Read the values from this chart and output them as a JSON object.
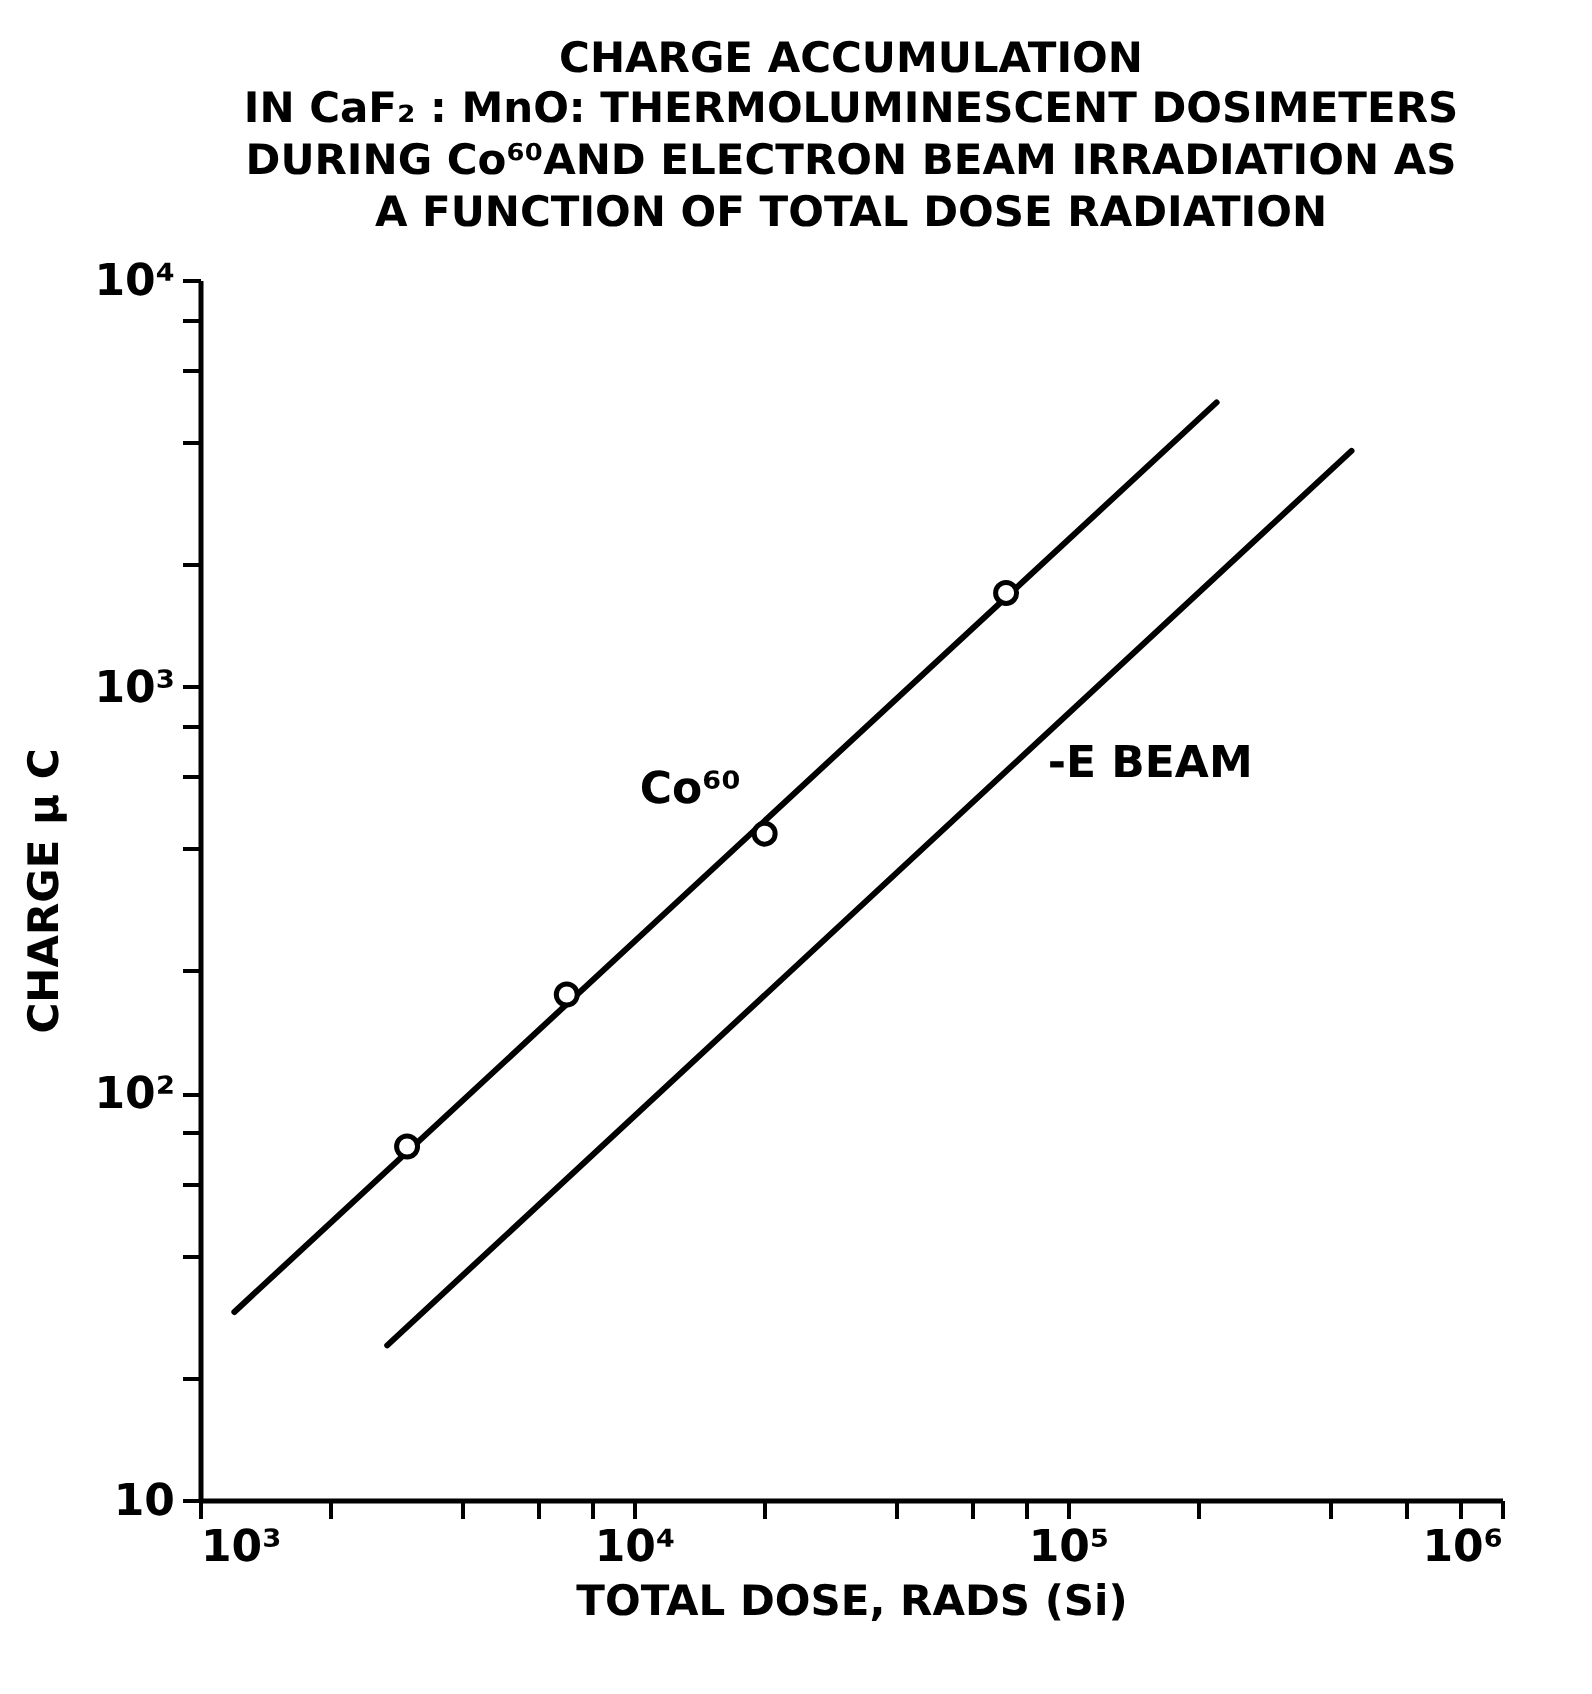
{
  "chart_data": {
    "type": "line",
    "title": "CHARGE ACCUMULATION",
    "subtitle": "IN CaF₂ : MnO: THERMOLUMINESCENT DOSIMETERS\nDURING Co⁶⁰AND ELECTRON BEAM IRRADIATION AS\nA FUNCTION OF TOTAL DOSE RADIATION",
    "xlabel": "TOTAL DOSE, RADS (Si)",
    "ylabel": "CHARGE μ C",
    "log": "xy",
    "grid": false,
    "line_style": "solid",
    "xlim": [
      1000,
      1000000
    ],
    "ylim": [
      10,
      10000
    ],
    "xticks": [
      {
        "value": 1000,
        "label": "10³"
      },
      {
        "value": 2000,
        "label": null
      },
      {
        "value": 4000,
        "label": null
      },
      {
        "value": 6000,
        "label": null
      },
      {
        "value": 8000,
        "label": null
      },
      {
        "value": 10000,
        "label": "10⁴"
      },
      {
        "value": 20000,
        "label": null
      },
      {
        "value": 40000,
        "label": null
      },
      {
        "value": 60000,
        "label": null
      },
      {
        "value": 80000,
        "label": null
      },
      {
        "value": 100000,
        "label": "10⁵"
      },
      {
        "value": 200000,
        "label": null
      },
      {
        "value": 400000,
        "label": null
      },
      {
        "value": 600000,
        "label": null
      },
      {
        "value": 800000,
        "label": null
      },
      {
        "value": 1000000,
        "label": "10⁶"
      }
    ],
    "yticks": [
      10,
      {
        "value": 20,
        "label": null
      },
      {
        "value": 40,
        "label": null
      },
      {
        "value": 60,
        "label": null
      },
      {
        "value": 80,
        "label": null
      },
      {
        "value": 100,
        "label": "10²"
      },
      {
        "value": 200,
        "label": null
      },
      {
        "value": 400,
        "label": null
      },
      {
        "value": 600,
        "label": null
      },
      {
        "value": 800,
        "label": null
      },
      {
        "value": 1000,
        "label": "10³"
      },
      {
        "value": 2000,
        "label": null
      },
      {
        "value": 4000,
        "label": null
      },
      {
        "value": 6000,
        "label": null
      },
      {
        "value": 8000,
        "label": null
      },
      {
        "value": 10000,
        "label": "10⁴"
      }
    ],
    "series": [
      {
        "name": "Co⁶⁰",
        "color": "#000000",
        "x": [
          1200,
          220000
        ],
        "values": [
          29,
          5000
        ]
      },
      {
        "type": "scatter",
        "marker": "circle",
        "color": "#000000",
        "x": [
          3000,
          7000,
          20000,
          72000
        ],
        "values": [
          74,
          175,
          435,
          1700
        ]
      },
      {
        "name": "-E BEAM",
        "color": "#000000",
        "x": [
          2700,
          450000
        ],
        "values": [
          24,
          3800
        ]
      }
    ]
  }
}
